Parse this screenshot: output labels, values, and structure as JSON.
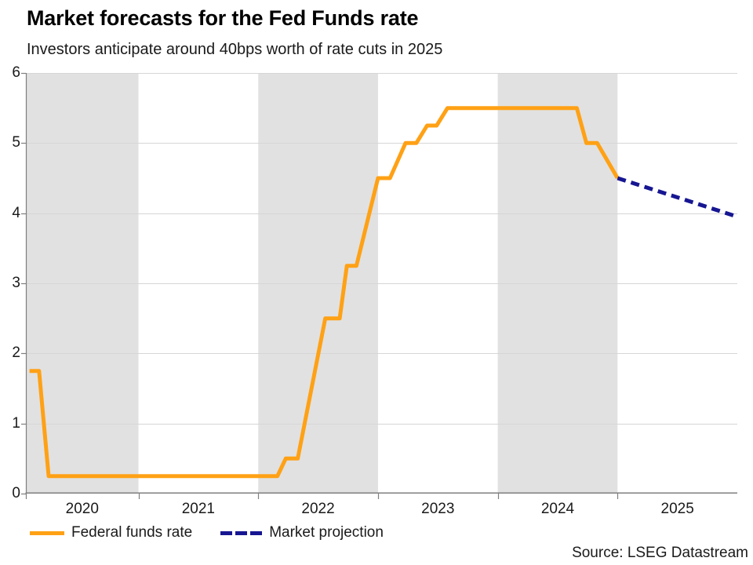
{
  "header": {
    "title": "Market forecasts for the Fed Funds rate",
    "subtitle": "Investors anticipate around 40bps worth of rate cuts in 2025"
  },
  "footer": {
    "source": "Source: LSEG Datastream"
  },
  "legend": [
    {
      "label": "Federal funds rate",
      "color": "#FFA115",
      "style": "solid"
    },
    {
      "label": "Market projection",
      "color": "#161692",
      "style": "dashed"
    }
  ],
  "colors": {
    "fed_line": "#FFA115",
    "projection_line": "#161692",
    "band": "#e1e1e1",
    "gridline": "#d6d6d6",
    "axis": "#7f7f7f",
    "text": "#1a1a1a"
  },
  "chart_data": {
    "type": "line",
    "title": "Market forecasts for the Fed Funds rate",
    "subtitle": "Investors anticipate around 40bps worth of rate cuts in 2025",
    "xlabel": "",
    "ylabel": "",
    "grid": true,
    "legend_position": "bottom-left",
    "x_domain": [
      2020.06,
      2026.0
    ],
    "y_domain": [
      0,
      6
    ],
    "y_ticks": [
      0,
      1,
      2,
      3,
      4,
      5,
      6
    ],
    "x_year_ticks": [
      2021,
      2022,
      2023,
      2024,
      2025
    ],
    "x_labels": [
      {
        "label": "2020",
        "center": 2020.53
      },
      {
        "label": "2021",
        "center": 2021.5
      },
      {
        "label": "2022",
        "center": 2022.5
      },
      {
        "label": "2023",
        "center": 2023.5
      },
      {
        "label": "2024",
        "center": 2024.5
      },
      {
        "label": "2025",
        "center": 2025.5
      }
    ],
    "shaded_years": [
      2020,
      2022,
      2024
    ],
    "series": [
      {
        "name": "Federal funds rate",
        "style": "solid",
        "color": "#FFA115",
        "points": [
          [
            2020.09,
            1.75
          ],
          [
            2020.17,
            1.75
          ],
          [
            2020.25,
            0.25
          ],
          [
            2022.16,
            0.25
          ],
          [
            2022.23,
            0.5
          ],
          [
            2022.33,
            0.5
          ],
          [
            2022.56,
            2.5
          ],
          [
            2022.68,
            2.5
          ],
          [
            2022.74,
            3.25
          ],
          [
            2022.82,
            3.25
          ],
          [
            2023.0,
            4.5
          ],
          [
            2023.1,
            4.5
          ],
          [
            2023.23,
            5.0
          ],
          [
            2023.32,
            5.0
          ],
          [
            2023.41,
            5.25
          ],
          [
            2023.49,
            5.25
          ],
          [
            2023.58,
            5.5
          ],
          [
            2024.66,
            5.5
          ],
          [
            2024.74,
            5.0
          ],
          [
            2024.83,
            5.0
          ],
          [
            2025.0,
            4.5
          ]
        ]
      },
      {
        "name": "Market projection",
        "style": "dashed",
        "color": "#161692",
        "points": [
          [
            2025.0,
            4.5
          ],
          [
            2026.0,
            3.95
          ]
        ]
      }
    ]
  }
}
